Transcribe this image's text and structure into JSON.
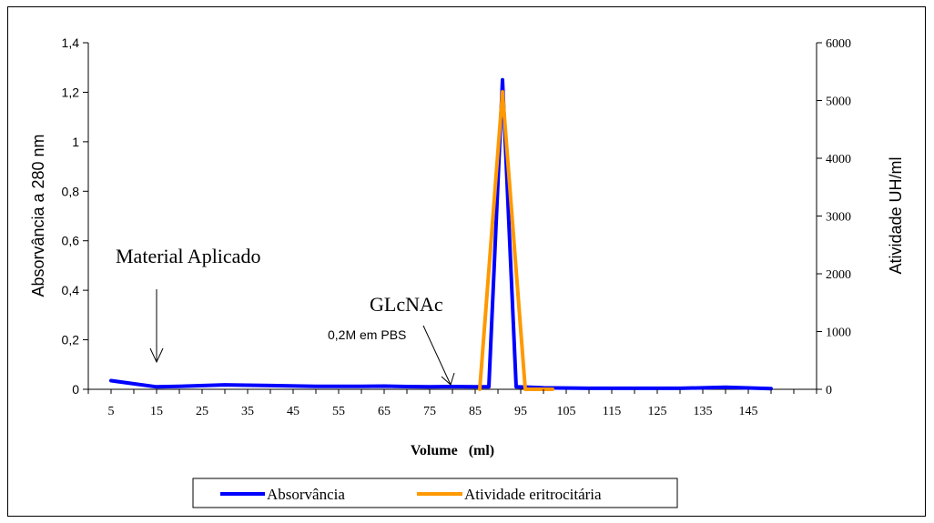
{
  "chart_data": {
    "type": "line",
    "xlabel": "Volume   (ml)",
    "ylabel_left": "Absorvância a 280 nm",
    "ylabel_right": "Atividade UH/ml",
    "x_ticks": [
      "5",
      "15",
      "25",
      "35",
      "45",
      "55",
      "65",
      "75",
      "85",
      "95",
      "105",
      "115",
      "125",
      "135",
      "145"
    ],
    "ylim_left": [
      0,
      1.4
    ],
    "y_ticks_left": [
      "0",
      "0,2",
      "0,4",
      "0,6",
      "0,8",
      "1",
      "1,2",
      "1,4"
    ],
    "ylim_right": [
      0,
      6000
    ],
    "y_ticks_right": [
      "0",
      "1000",
      "2000",
      "3000",
      "4000",
      "5000",
      "6000"
    ],
    "series": [
      {
        "name": "Absorvância",
        "axis": "left",
        "color": "#0000ff",
        "x": [
          5,
          15,
          20,
          30,
          40,
          50,
          60,
          65,
          70,
          75,
          80,
          85,
          88,
          91,
          94,
          97,
          100,
          110,
          120,
          130,
          140,
          150
        ],
        "y": [
          0.035,
          0.01,
          0.012,
          0.018,
          0.015,
          0.012,
          0.012,
          0.013,
          0.011,
          0.01,
          0.011,
          0.01,
          0.01,
          1.25,
          0.01,
          0.008,
          0.006,
          0.004,
          0.004,
          0.004,
          0.008,
          0.003
        ]
      },
      {
        "name": "Atividade eritrocitária",
        "axis": "right",
        "color": "#ff9900",
        "x": [
          86,
          91,
          96,
          102
        ],
        "y": [
          0,
          5150,
          0,
          0
        ]
      }
    ],
    "annotations": [
      {
        "text": "Material Aplicado",
        "x": 15
      },
      {
        "text": "GLcNAc",
        "x": 80
      },
      {
        "text": "0,2M em PBS",
        "x": 80
      }
    ],
    "legend_position": "bottom",
    "grid": false
  }
}
